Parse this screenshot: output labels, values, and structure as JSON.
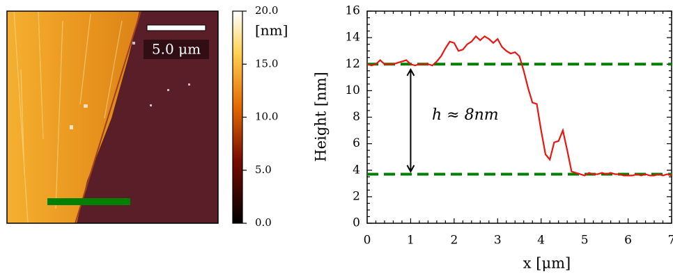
{
  "chart_data": [
    {
      "type": "image",
      "scale_bar_label": "5.0 μm",
      "colorbar": {
        "label": "[nm]",
        "lim": [
          0,
          20
        ],
        "ticks": [
          {
            "value": 0,
            "label": "0.0"
          },
          {
            "value": 5,
            "label": "5.0"
          },
          {
            "value": 10,
            "label": "10.0"
          },
          {
            "value": 15,
            "label": "15.0"
          },
          {
            "value": 20,
            "label": "20.0"
          }
        ]
      }
    },
    {
      "type": "line",
      "xlabel": "x [μm]",
      "ylabel": "Height [nm]",
      "annotation": "h ≈ 8nm",
      "x": [
        0,
        0.1,
        0.2,
        0.3,
        0.4,
        0.5,
        0.6,
        0.7,
        0.8,
        0.9,
        1,
        1.1,
        1.2,
        1.3,
        1.4,
        1.5,
        1.6,
        1.7,
        1.8,
        1.9,
        2,
        2.1,
        2.2,
        2.3,
        2.4,
        2.5,
        2.6,
        2.7,
        2.8,
        2.9,
        3,
        3.1,
        3.2,
        3.3,
        3.4,
        3.5,
        3.6,
        3.7,
        3.8,
        3.9,
        4,
        4.1,
        4.2,
        4.3,
        4.4,
        4.5,
        4.6,
        4.7,
        4.8,
        4.9,
        5,
        5.1,
        5.2,
        5.3,
        5.4,
        5.5,
        5.6,
        5.7,
        5.8,
        5.9,
        6,
        6.1,
        6.2,
        6.3,
        6.4,
        6.5,
        6.6,
        6.7,
        6.8,
        6.9,
        7
      ],
      "series": [
        {
          "color": "#e8160f",
          "values": [
            12,
            11.9,
            12,
            12.3,
            12,
            12,
            12,
            12.1,
            12.2,
            12.3,
            12,
            11.9,
            12,
            12,
            12,
            11.9,
            12.2,
            12.6,
            13.2,
            13.7,
            13.6,
            13,
            13.1,
            13.5,
            13.7,
            14.1,
            13.8,
            14.1,
            13.9,
            13.6,
            13.9,
            13.3,
            13,
            12.8,
            12.9,
            12.6,
            11.5,
            10.2,
            9.1,
            9,
            7,
            5.2,
            4.8,
            6.1,
            6.2,
            7,
            5.5,
            3.9,
            3.8,
            3.7,
            3.6,
            3.8,
            3.7,
            3.7,
            3.8,
            3.7,
            3.8,
            3.7,
            3.7,
            3.6,
            3.6,
            3.6,
            3.7,
            3.6,
            3.7,
            3.6,
            3.6,
            3.7,
            3.6,
            3.7,
            3.6
          ]
        }
      ],
      "hlines": {
        "color": "#008000",
        "values": [
          12,
          3.7
        ]
      },
      "arrow": {
        "x": 1,
        "y": [
          3.9,
          11.6
        ]
      },
      "xlim": [
        0,
        7
      ],
      "ylim": [
        0,
        16
      ],
      "xticks": [
        0,
        1,
        2,
        3,
        4,
        5,
        6,
        7
      ],
      "yticks": [
        0,
        2,
        4,
        6,
        8,
        10,
        12,
        14,
        16
      ],
      "minor_ticks": true
    }
  ]
}
